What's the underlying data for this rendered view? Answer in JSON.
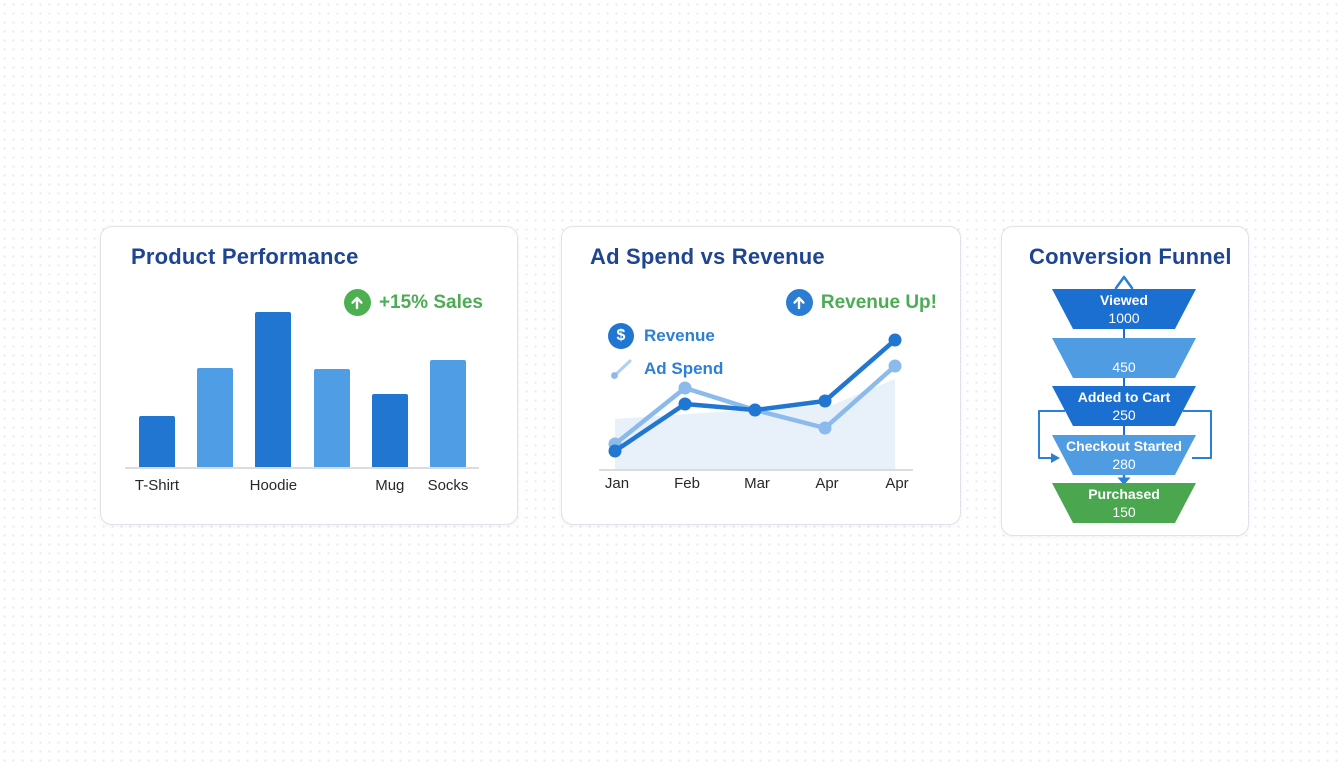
{
  "colors": {
    "title_navy": "#1e4492",
    "dark_blue": "#2176d2",
    "light_blue": "#4f9de4",
    "ad_spend_blue": "#8abbec",
    "green_text": "#4bad53",
    "green_icon": "#4caf50",
    "blue_icon": "#2b7cd3",
    "funnel_dark": "#1b6fd0",
    "funnel_light": "#4f9ce2",
    "funnel_green": "#4aa64f",
    "connector_blue": "#2b7fd4",
    "baseline_gray": "#d9dce1",
    "axis_label": "#26282c",
    "area_fill": "#e4edf9"
  },
  "cards": [
    {
      "title": "Product Performance",
      "badge_text": "+15% Sales"
    },
    {
      "title": "Ad Spend vs Revenue",
      "badge_text": "Revenue Up!",
      "legend": [
        {
          "icon": "dollar-circle-icon",
          "label": "Revenue"
        },
        {
          "icon": "trend-line-icon",
          "label": "Ad Spend"
        }
      ]
    },
    {
      "title": "Conversion Funnel"
    }
  ],
  "chart_data": [
    {
      "type": "bar",
      "title": "Product Performance",
      "annotation": "+15% Sales",
      "categories": [
        "T-Shirt",
        "",
        "Hoodie",
        "",
        "Mug",
        "Socks"
      ],
      "values": [
        33,
        64,
        100,
        63,
        47,
        69
      ],
      "bar_shades": [
        "dark",
        "light",
        "dark",
        "light",
        "dark",
        "light"
      ],
      "ylim": [
        0,
        100
      ],
      "grid": false,
      "y_axis_shown": false
    },
    {
      "type": "line",
      "title": "Ad Spend vs Revenue",
      "annotation": "Revenue Up!",
      "categories": [
        "Jan",
        "Feb",
        "Mar",
        "Apr",
        "Apr"
      ],
      "series": [
        {
          "name": "Revenue",
          "color": "#2176d2",
          "values": [
            19,
            66,
            60,
            69,
            130
          ]
        },
        {
          "name": "Ad Spend",
          "color": "#8abbec",
          "values": [
            26,
            82,
            60,
            42,
            104
          ]
        }
      ],
      "area_background": {
        "x": [
          0,
          2.1,
          3.1,
          4
        ],
        "values": [
          51,
          61,
          65,
          91
        ],
        "fill": "#e4edf9"
      },
      "ylim": [
        0,
        140
      ],
      "grid": false,
      "legend_position": "top-left"
    },
    {
      "type": "funnel",
      "title": "Conversion Funnel",
      "stages": [
        {
          "label": "Viewed",
          "value": 1000,
          "shade": "dark"
        },
        {
          "label": "",
          "value": 450,
          "shade": "light"
        },
        {
          "label": "Added to Cart",
          "value": 250,
          "shade": "dark"
        },
        {
          "label": "Checkout Started",
          "value": 280,
          "shade": "light"
        },
        {
          "label": "Purchased",
          "value": 150,
          "shade": "green"
        }
      ],
      "connectors": {
        "top_arrow": true,
        "stage_links": true,
        "side_loop_from": "Added to Cart",
        "side_loop_to": "Checkout Started",
        "down_arrow_before": "Purchased"
      }
    }
  ]
}
